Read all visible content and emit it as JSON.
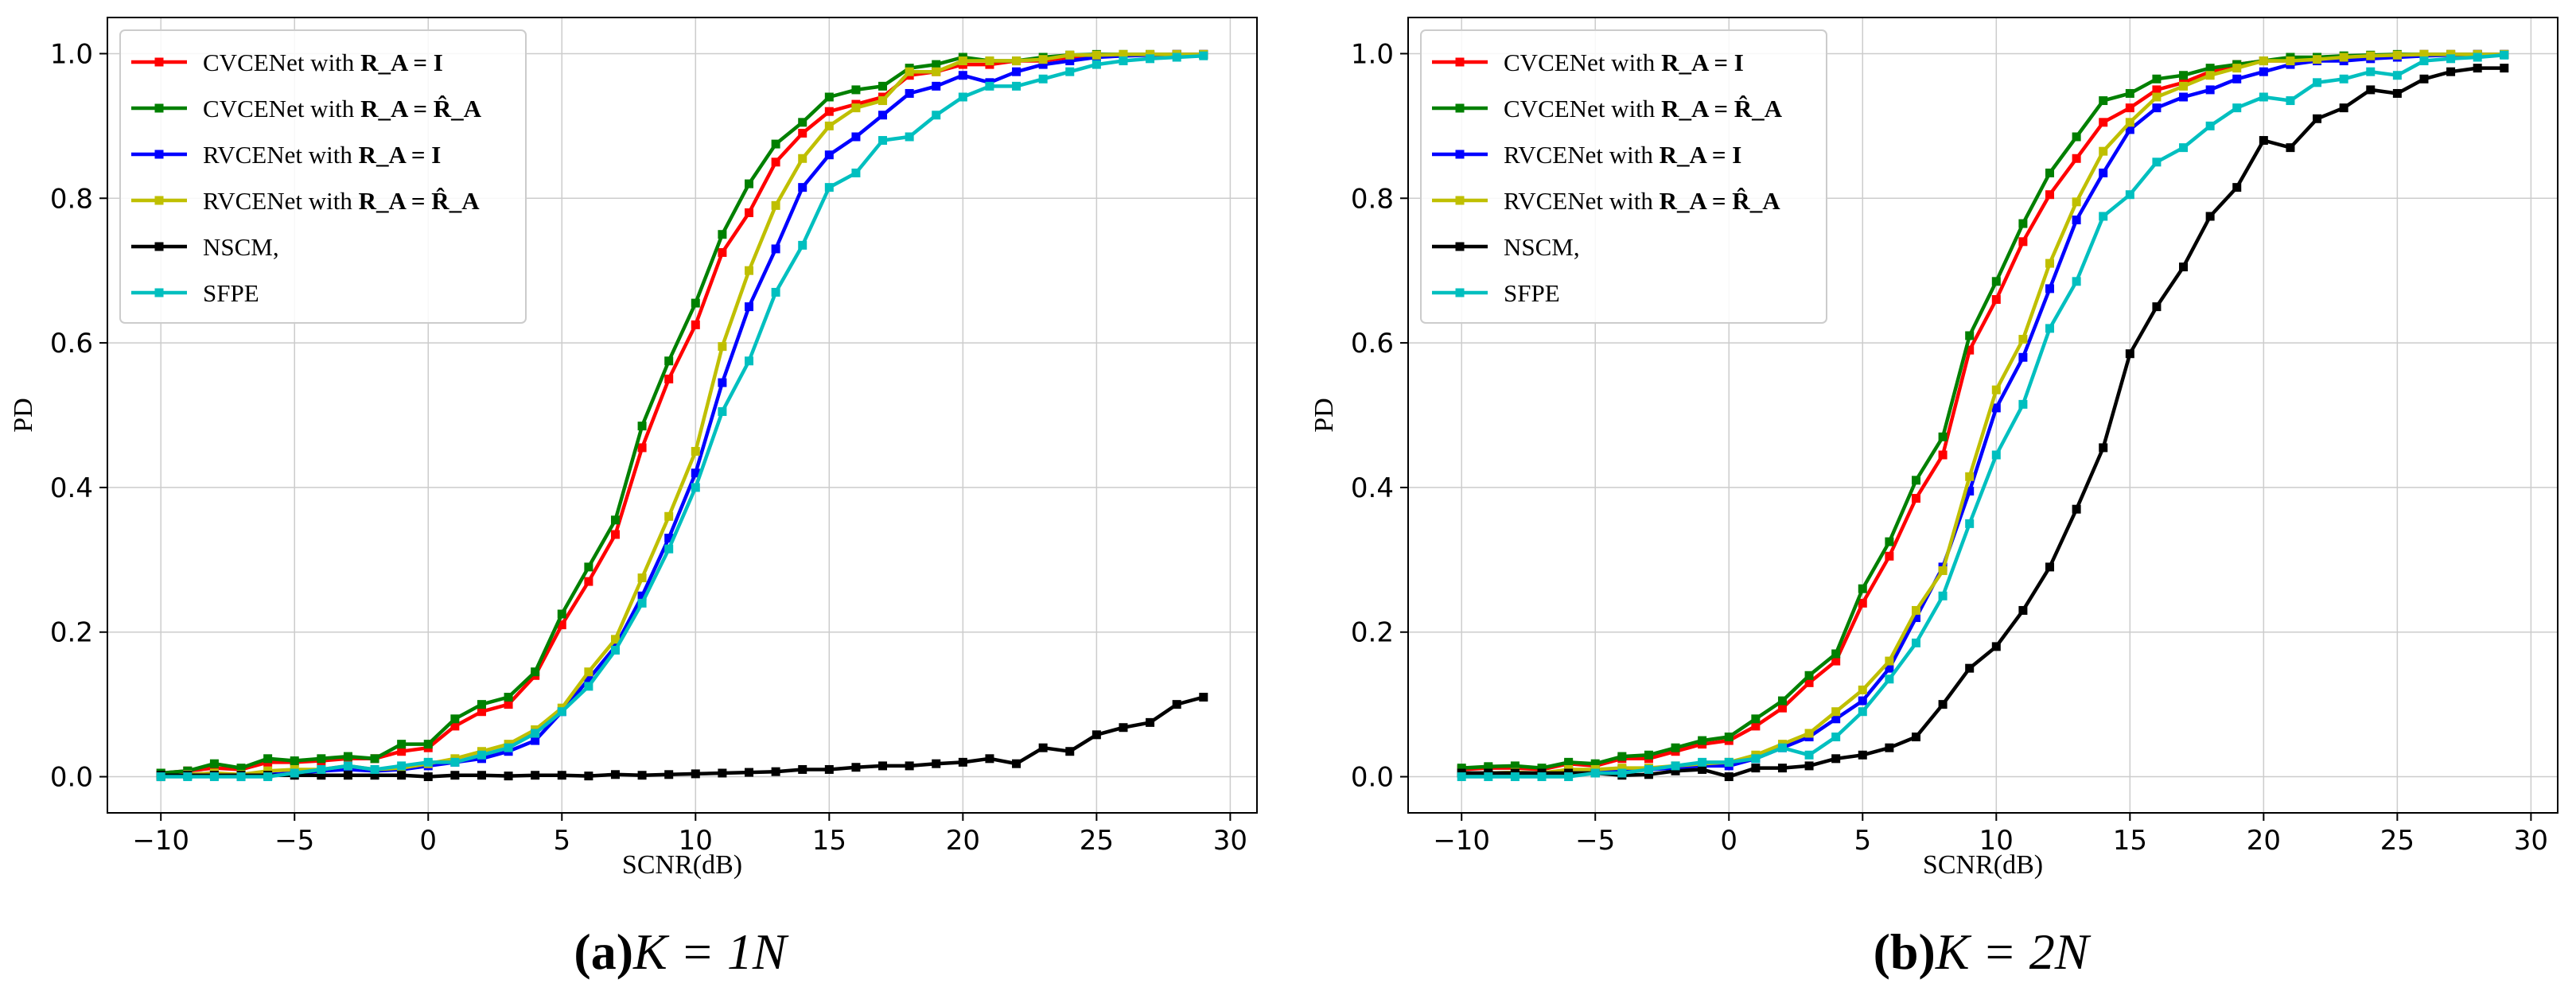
{
  "colors": {
    "red": "#ff0000",
    "green": "#008000",
    "blue": "#0000ff",
    "olive": "#bfbf00",
    "black": "#000000",
    "cyan": "#00bfbf",
    "grid": "#cccccc"
  },
  "chart_data": [
    {
      "type": "line",
      "caption": {
        "letter": "(a)",
        "math": "K = 1N"
      },
      "xlabel": "SCNR(dB)",
      "ylabel": "PD",
      "xlim": [
        -12,
        31
      ],
      "ylim": [
        -0.05,
        1.05
      ],
      "xticks": [
        "−10",
        "−5",
        "0",
        "5",
        "10",
        "15",
        "20",
        "25",
        "30"
      ],
      "yticks": [
        "0.0",
        "0.2",
        "0.4",
        "0.6",
        "0.8",
        "1.0"
      ],
      "grid": true,
      "legend_position": "top-left",
      "x": [
        -10,
        -9,
        -8,
        -7,
        -6,
        -5,
        -4,
        -3,
        -2,
        -1,
        0,
        1,
        2,
        3,
        4,
        5,
        6,
        7,
        8,
        9,
        10,
        11,
        12,
        13,
        14,
        15,
        16,
        17,
        18,
        19,
        20,
        21,
        22,
        23,
        24,
        25,
        26,
        27,
        28,
        29
      ],
      "series": [
        {
          "name": "CVCENet with R_A = I",
          "label_plain": "CVCENet with ",
          "label_math": "R_A = I",
          "color": "red",
          "values": [
            0.005,
            0.008,
            0.012,
            0.01,
            0.02,
            0.02,
            0.022,
            0.025,
            0.025,
            0.035,
            0.04,
            0.07,
            0.09,
            0.1,
            0.14,
            0.21,
            0.27,
            0.335,
            0.455,
            0.55,
            0.625,
            0.725,
            0.78,
            0.85,
            0.89,
            0.92,
            0.93,
            0.94,
            0.97,
            0.975,
            0.985,
            0.985,
            0.99,
            0.99,
            0.995,
            0.998,
            0.998,
            0.998,
            0.999,
            0.999
          ]
        },
        {
          "name": "CVCENet with R_A = R̂_A",
          "label_plain": "CVCENet with ",
          "label_math": "R_A = R̂_A",
          "color": "green",
          "values": [
            0.005,
            0.008,
            0.018,
            0.012,
            0.025,
            0.022,
            0.025,
            0.028,
            0.025,
            0.045,
            0.045,
            0.08,
            0.1,
            0.11,
            0.145,
            0.225,
            0.29,
            0.355,
            0.485,
            0.575,
            0.655,
            0.75,
            0.82,
            0.875,
            0.905,
            0.94,
            0.95,
            0.955,
            0.98,
            0.985,
            0.995,
            0.99,
            0.99,
            0.995,
            0.998,
            0.999,
            0.999,
            0.999,
            0.999,
            0.999
          ]
        },
        {
          "name": "RVCENet with R_A = I",
          "label_plain": "RVCENet with ",
          "label_math": "R_A = I",
          "color": "blue",
          "values": [
            0.0,
            0.003,
            0.005,
            0.0,
            0.003,
            0.005,
            0.008,
            0.01,
            0.008,
            0.01,
            0.015,
            0.02,
            0.025,
            0.035,
            0.05,
            0.09,
            0.135,
            0.18,
            0.25,
            0.33,
            0.42,
            0.545,
            0.65,
            0.73,
            0.815,
            0.86,
            0.885,
            0.915,
            0.945,
            0.955,
            0.97,
            0.96,
            0.975,
            0.985,
            0.99,
            0.995,
            0.997,
            0.998,
            0.999,
            0.999
          ]
        },
        {
          "name": "RVCENet with R_A = R̂_A",
          "label_plain": "RVCENet with ",
          "label_math": "R_A = R̂_A",
          "color": "olive",
          "values": [
            0.0,
            0.003,
            0.005,
            0.003,
            0.008,
            0.01,
            0.01,
            0.015,
            0.01,
            0.012,
            0.018,
            0.025,
            0.035,
            0.045,
            0.065,
            0.095,
            0.145,
            0.19,
            0.275,
            0.36,
            0.45,
            0.595,
            0.7,
            0.79,
            0.855,
            0.9,
            0.925,
            0.935,
            0.975,
            0.975,
            0.99,
            0.99,
            0.99,
            0.992,
            0.998,
            0.998,
            0.999,
            0.999,
            0.999,
            0.999
          ]
        },
        {
          "name": "NSCM,",
          "label_plain": "NSCM,",
          "label_math": "",
          "color": "black",
          "values": [
            0.002,
            0.002,
            0.002,
            0.002,
            0.002,
            0.002,
            0.002,
            0.002,
            0.002,
            0.002,
            0.0,
            0.002,
            0.002,
            0.001,
            0.002,
            0.002,
            0.001,
            0.003,
            0.002,
            0.003,
            0.004,
            0.005,
            0.006,
            0.007,
            0.01,
            0.01,
            0.013,
            0.015,
            0.015,
            0.018,
            0.02,
            0.025,
            0.018,
            0.04,
            0.035,
            0.058,
            0.068,
            0.075,
            0.1,
            0.11
          ]
        },
        {
          "name": "SFPE",
          "label_plain": "SFPE",
          "label_math": "",
          "color": "cyan",
          "values": [
            0.0,
            0.0,
            0.0,
            0.0,
            0.0,
            0.005,
            0.01,
            0.015,
            0.01,
            0.015,
            0.02,
            0.02,
            0.03,
            0.04,
            0.06,
            0.09,
            0.125,
            0.175,
            0.24,
            0.315,
            0.4,
            0.505,
            0.575,
            0.67,
            0.735,
            0.815,
            0.835,
            0.88,
            0.885,
            0.915,
            0.94,
            0.955,
            0.955,
            0.965,
            0.975,
            0.985,
            0.99,
            0.993,
            0.995,
            0.997
          ]
        }
      ]
    },
    {
      "type": "line",
      "caption": {
        "letter": "(b)",
        "math": "K = 2N"
      },
      "xlabel": "SCNR(dB)",
      "ylabel": "PD",
      "xlim": [
        -12,
        31
      ],
      "ylim": [
        -0.05,
        1.05
      ],
      "xticks": [
        "−10",
        "−5",
        "0",
        "5",
        "10",
        "15",
        "20",
        "25",
        "30"
      ],
      "yticks": [
        "0.0",
        "0.2",
        "0.4",
        "0.6",
        "0.8",
        "1.0"
      ],
      "grid": true,
      "legend_position": "top-left",
      "x": [
        -10,
        -9,
        -8,
        -7,
        -6,
        -5,
        -4,
        -3,
        -2,
        -1,
        0,
        1,
        2,
        3,
        4,
        5,
        6,
        7,
        8,
        9,
        10,
        11,
        12,
        13,
        14,
        15,
        16,
        17,
        18,
        19,
        20,
        21,
        22,
        23,
        24,
        25,
        26,
        27,
        28,
        29
      ],
      "series": [
        {
          "name": "CVCENet with R_A = I",
          "label_plain": "CVCENet with ",
          "label_math": "R_A = I",
          "color": "red",
          "values": [
            0.01,
            0.012,
            0.012,
            0.01,
            0.018,
            0.015,
            0.025,
            0.025,
            0.035,
            0.045,
            0.05,
            0.07,
            0.095,
            0.13,
            0.16,
            0.24,
            0.305,
            0.385,
            0.445,
            0.59,
            0.66,
            0.74,
            0.805,
            0.855,
            0.905,
            0.925,
            0.95,
            0.96,
            0.975,
            0.985,
            0.99,
            0.99,
            0.995,
            0.995,
            0.997,
            0.998,
            0.999,
            0.999,
            0.999,
            0.999
          ]
        },
        {
          "name": "CVCENet with R_A = R̂_A",
          "label_plain": "CVCENet with ",
          "label_math": "R_A = R̂_A",
          "color": "green",
          "values": [
            0.012,
            0.014,
            0.015,
            0.012,
            0.02,
            0.018,
            0.028,
            0.03,
            0.04,
            0.05,
            0.055,
            0.08,
            0.105,
            0.14,
            0.17,
            0.26,
            0.325,
            0.41,
            0.47,
            0.61,
            0.685,
            0.765,
            0.835,
            0.885,
            0.935,
            0.945,
            0.965,
            0.97,
            0.98,
            0.985,
            0.99,
            0.995,
            0.995,
            0.997,
            0.998,
            0.999,
            0.999,
            0.999,
            0.999,
            0.999
          ]
        },
        {
          "name": "RVCENet with R_A = I",
          "label_plain": "RVCENet with ",
          "label_math": "R_A = I",
          "color": "blue",
          "values": [
            0.005,
            0.005,
            0.006,
            0.005,
            0.008,
            0.008,
            0.01,
            0.01,
            0.012,
            0.015,
            0.015,
            0.025,
            0.04,
            0.055,
            0.08,
            0.105,
            0.15,
            0.22,
            0.29,
            0.395,
            0.51,
            0.58,
            0.675,
            0.77,
            0.835,
            0.895,
            0.925,
            0.94,
            0.95,
            0.965,
            0.975,
            0.985,
            0.99,
            0.99,
            0.993,
            0.995,
            0.997,
            0.998,
            0.999,
            0.999
          ]
        },
        {
          "name": "RVCENet with R_A = R̂_A",
          "label_plain": "RVCENet with ",
          "label_math": "R_A = R̂_A",
          "color": "olive",
          "values": [
            0.005,
            0.005,
            0.006,
            0.005,
            0.01,
            0.01,
            0.012,
            0.012,
            0.015,
            0.018,
            0.02,
            0.03,
            0.045,
            0.06,
            0.09,
            0.12,
            0.16,
            0.23,
            0.285,
            0.415,
            0.535,
            0.605,
            0.71,
            0.795,
            0.865,
            0.905,
            0.94,
            0.955,
            0.97,
            0.98,
            0.99,
            0.99,
            0.992,
            0.995,
            0.997,
            0.998,
            0.999,
            0.999,
            0.999,
            0.999
          ]
        },
        {
          "name": "NSCM,",
          "label_plain": "NSCM,",
          "label_math": "",
          "color": "black",
          "values": [
            0.005,
            0.005,
            0.005,
            0.005,
            0.005,
            0.005,
            0.002,
            0.003,
            0.008,
            0.01,
            0.0,
            0.012,
            0.012,
            0.015,
            0.025,
            0.03,
            0.04,
            0.055,
            0.1,
            0.15,
            0.18,
            0.23,
            0.29,
            0.37,
            0.455,
            0.585,
            0.65,
            0.705,
            0.775,
            0.815,
            0.88,
            0.87,
            0.91,
            0.925,
            0.95,
            0.945,
            0.965,
            0.975,
            0.98,
            0.98
          ]
        },
        {
          "name": "SFPE",
          "label_plain": "SFPE",
          "label_math": "",
          "color": "cyan",
          "values": [
            0.0,
            0.0,
            0.0,
            0.0,
            0.0,
            0.005,
            0.005,
            0.01,
            0.015,
            0.02,
            0.02,
            0.025,
            0.04,
            0.03,
            0.055,
            0.09,
            0.135,
            0.185,
            0.25,
            0.35,
            0.445,
            0.515,
            0.62,
            0.685,
            0.775,
            0.805,
            0.85,
            0.87,
            0.9,
            0.925,
            0.94,
            0.935,
            0.96,
            0.965,
            0.975,
            0.97,
            0.99,
            0.993,
            0.995,
            0.998
          ]
        }
      ]
    }
  ]
}
